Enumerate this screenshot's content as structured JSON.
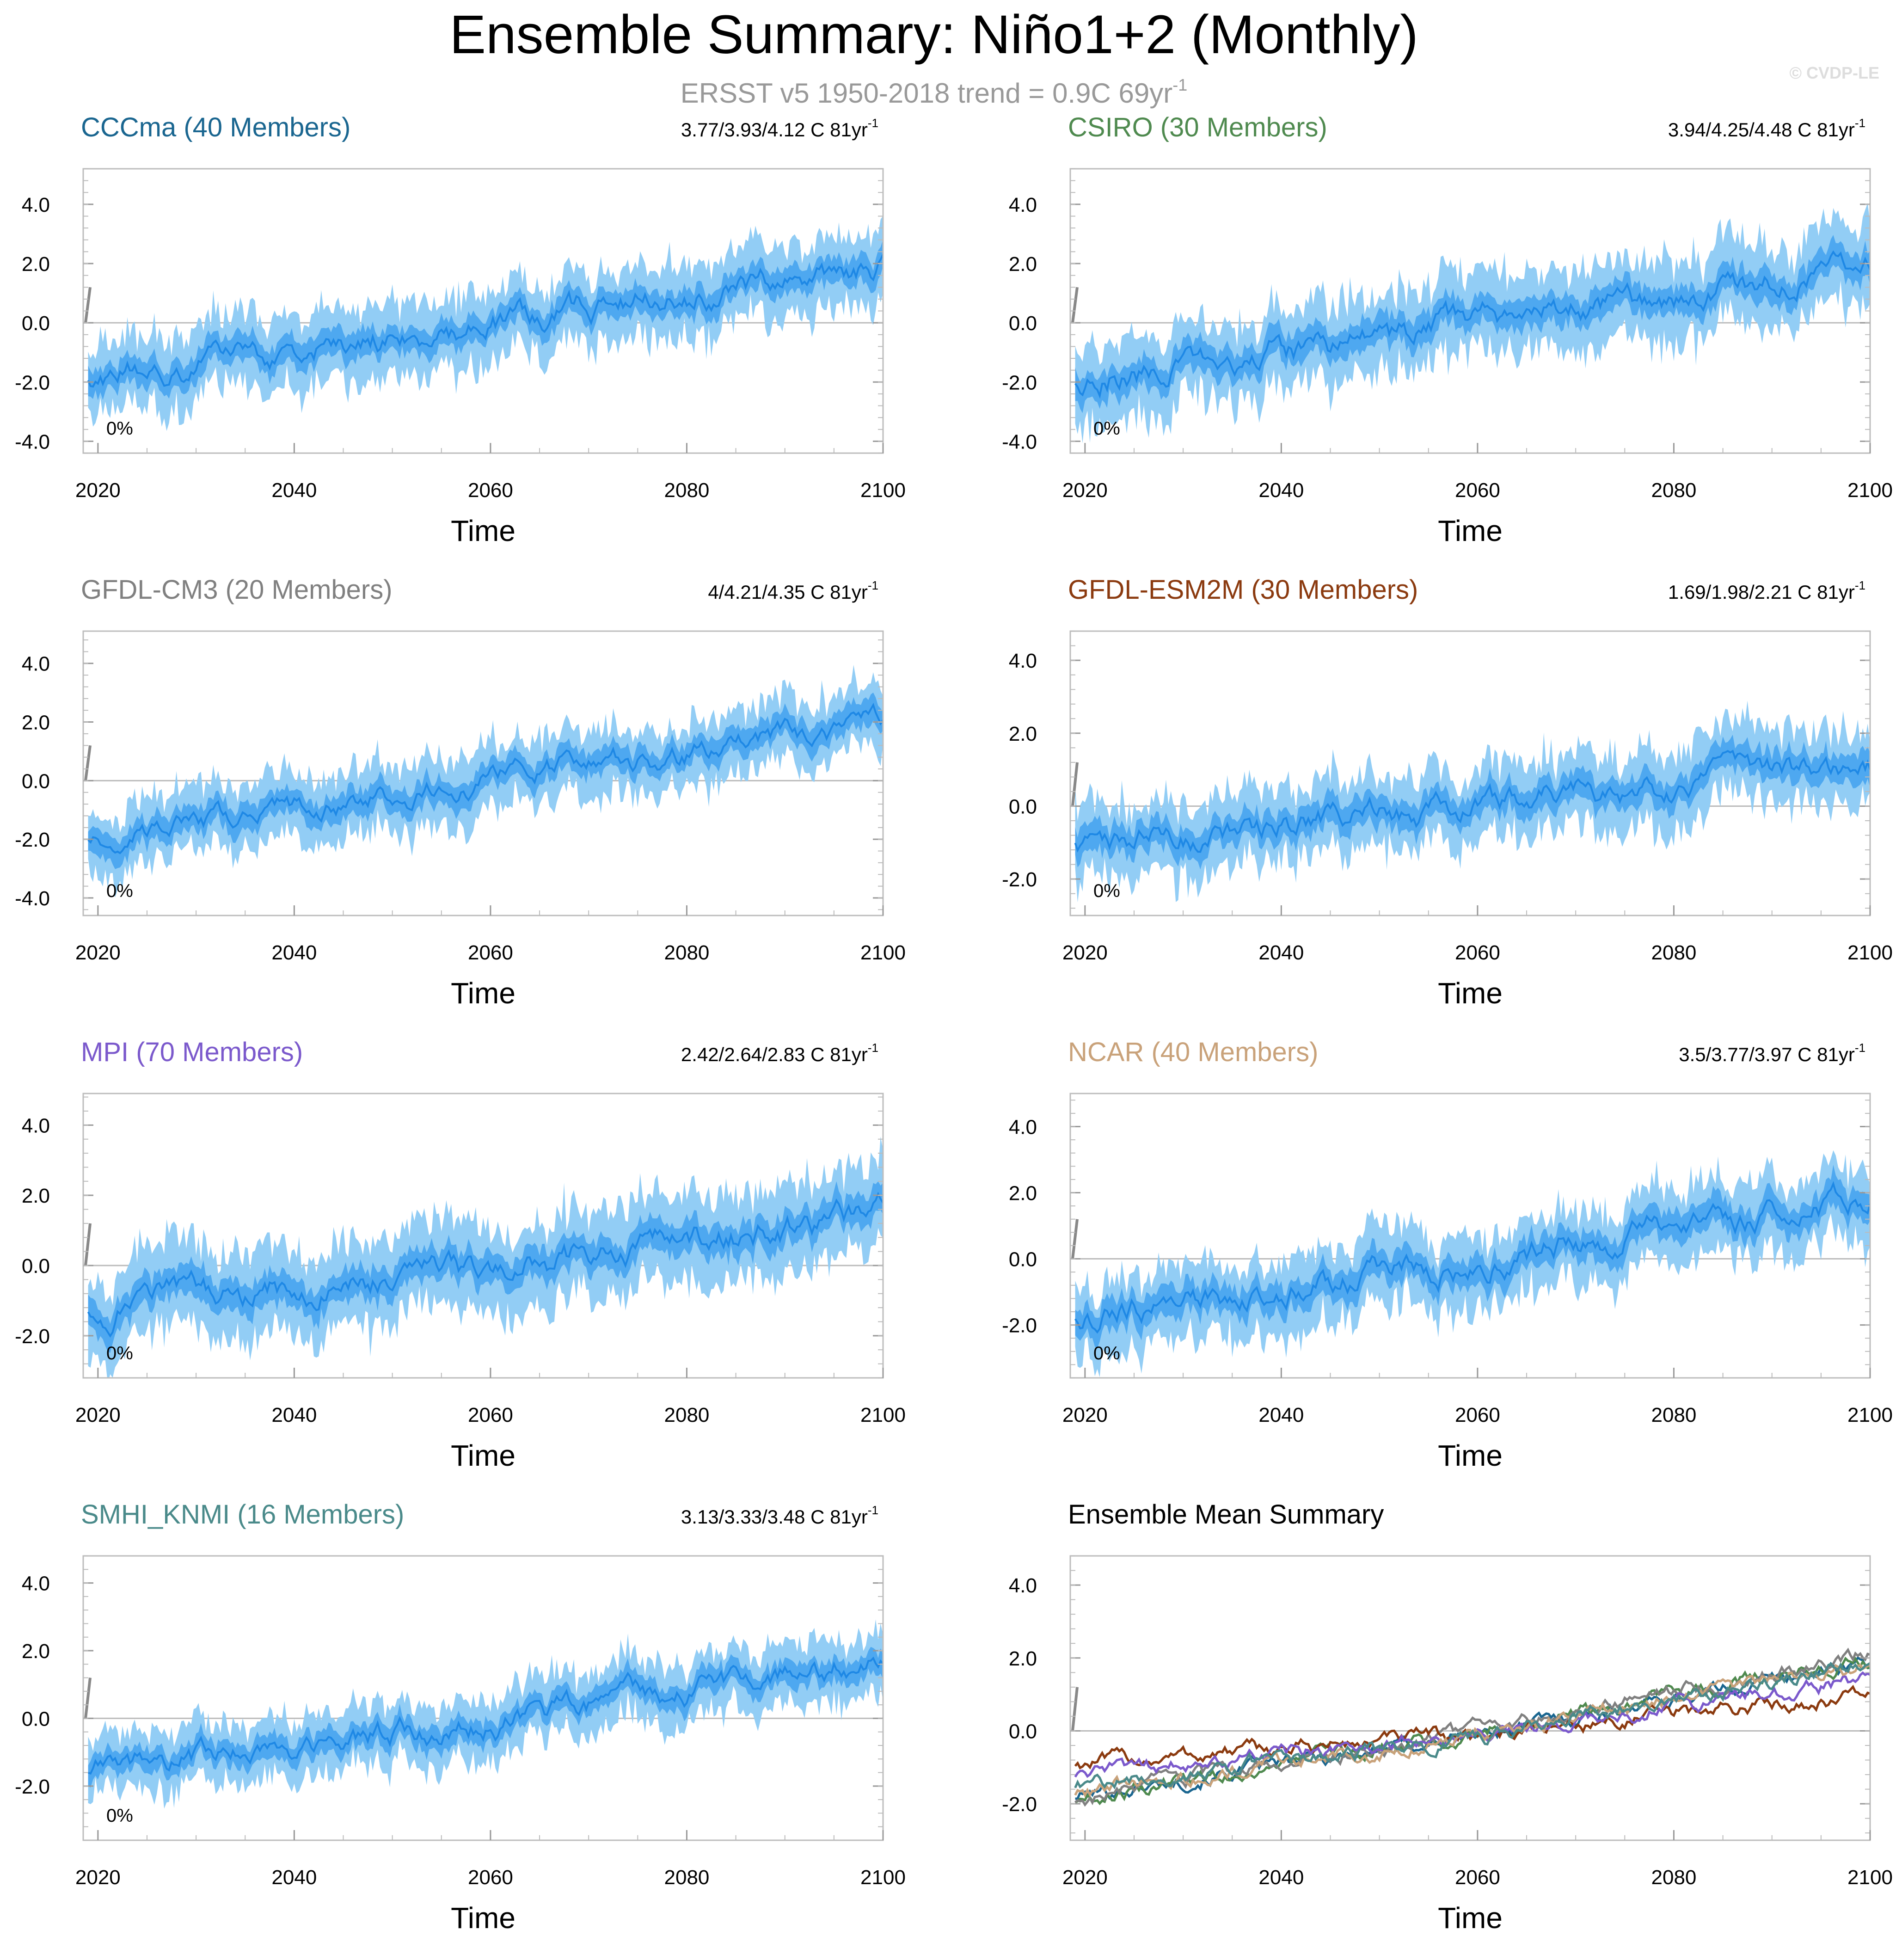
{
  "title": "Ensemble Summary: Niño1+2 (Monthly)",
  "subtitle": "ERSST v5 1950-2018 trend = 0.9C 69yr",
  "subtitle_sup": "-1",
  "watermark": "© CVDP-LE",
  "colors": {
    "band_outer": "#92cdf5",
    "band_inner": "#4ea8f0",
    "mean_line": "#1e88e5",
    "zero_line": "#bbbbbb",
    "obs_trend": "#888888"
  },
  "chart_data": [
    {
      "type": "area",
      "label": "CCCma (40 Members)",
      "label_color": "#1a6690",
      "trend": "3.77/3.93/4.12 C 81yr",
      "trend_sup": "-1",
      "pct": "0%",
      "xlabel": "Time",
      "xlim": [
        2018.5,
        2100
      ],
      "ylim": [
        -4.4,
        5.2
      ],
      "xticks": [
        2020,
        2040,
        2060,
        2080,
        2100
      ],
      "yticks": [
        4.0,
        2.0,
        0.0,
        -2.0,
        -4.0
      ],
      "ytick_labels": [
        "4.0",
        "2.0",
        "0.0",
        "-2.0",
        "-4.0"
      ],
      "mean": {
        "x": [
          2019,
          2030,
          2040,
          2050,
          2060,
          2070,
          2080,
          2090,
          2100
        ],
        "y": [
          -1.8,
          -1.3,
          -0.9,
          -0.5,
          -0.1,
          0.5,
          0.9,
          1.4,
          1.9
        ]
      },
      "spread_outer": 1.1,
      "spread_inner": 0.45,
      "noise": 0.55,
      "seed": 11
    },
    {
      "type": "area",
      "label": "CSIRO (30 Members)",
      "label_color": "#4f8a4f",
      "trend": "3.94/4.25/4.48 C 81yr",
      "trend_sup": "-1",
      "pct": "0%",
      "xlabel": "Time",
      "xlim": [
        2018.5,
        2100
      ],
      "ylim": [
        -4.4,
        5.2
      ],
      "xticks": [
        2020,
        2040,
        2060,
        2080,
        2100
      ],
      "yticks": [
        4.0,
        2.0,
        0.0,
        -2.0,
        -4.0
      ],
      "ytick_labels": [
        "4.0",
        "2.0",
        "0.0",
        "-2.0",
        "-4.0"
      ],
      "mean": {
        "x": [
          2019,
          2030,
          2040,
          2050,
          2060,
          2070,
          2080,
          2090,
          2100
        ],
        "y": [
          -1.9,
          -1.5,
          -1.0,
          -0.6,
          0.0,
          0.5,
          0.9,
          1.4,
          2.0
        ]
      },
      "spread_outer": 1.2,
      "spread_inner": 0.5,
      "noise": 0.6,
      "seed": 23
    },
    {
      "type": "area",
      "label": "GFDL-CM3 (20 Members)",
      "label_color": "#808080",
      "trend": "4/4.21/4.35 C 81yr",
      "trend_sup": "-1",
      "pct": "0%",
      "xlabel": "Time",
      "xlim": [
        2018.5,
        2100
      ],
      "ylim": [
        -4.6,
        5.1
      ],
      "xticks": [
        2020,
        2040,
        2060,
        2080,
        2100
      ],
      "yticks": [
        4.0,
        2.0,
        0.0,
        -2.0,
        -4.0
      ],
      "ytick_labels": [
        "4.0",
        "2.0",
        "0.0",
        "-2.0",
        "-4.0"
      ],
      "mean": {
        "x": [
          2019,
          2030,
          2040,
          2050,
          2060,
          2070,
          2080,
          2090,
          2100
        ],
        "y": [
          -1.9,
          -1.5,
          -1.0,
          -0.5,
          0.0,
          0.5,
          0.9,
          1.4,
          2.1
        ]
      },
      "spread_outer": 1.0,
      "spread_inner": 0.45,
      "noise": 0.5,
      "seed": 37
    },
    {
      "type": "area",
      "label": "GFDL-ESM2M (30 Members)",
      "label_color": "#8b3a0f",
      "trend": "1.69/1.98/2.21 C 81yr",
      "trend_sup": "-1",
      "pct": "0%",
      "xlabel": "Time",
      "xlim": [
        2018.5,
        2100
      ],
      "ylim": [
        -3.0,
        4.8
      ],
      "xticks": [
        2020,
        2040,
        2060,
        2080,
        2100
      ],
      "yticks": [
        4.0,
        2.0,
        0.0,
        -2.0
      ],
      "ytick_labels": [
        "4.0",
        "2.0",
        "0.0",
        "-2.0"
      ],
      "mean": {
        "x": [
          2019,
          2030,
          2040,
          2050,
          2060,
          2070,
          2080,
          2090,
          2100
        ],
        "y": [
          -0.9,
          -0.8,
          -0.6,
          -0.3,
          -0.1,
          0.3,
          0.5,
          0.8,
          1.0
        ]
      },
      "spread_outer": 0.9,
      "spread_inner": 0.4,
      "noise": 0.45,
      "seed": 41
    },
    {
      "type": "area",
      "label": "MPI (70 Members)",
      "label_color": "#7b59cc",
      "trend": "2.42/2.64/2.83 C 81yr",
      "trend_sup": "-1",
      "pct": "0%",
      "xlabel": "Time",
      "xlim": [
        2018.5,
        2100
      ],
      "ylim": [
        -3.2,
        4.9
      ],
      "xticks": [
        2020,
        2040,
        2060,
        2080,
        2100
      ],
      "yticks": [
        4.0,
        2.0,
        0.0,
        -2.0
      ],
      "ytick_labels": [
        "4.0",
        "2.0",
        "0.0",
        "-2.0"
      ],
      "mean": {
        "x": [
          2019,
          2030,
          2040,
          2050,
          2060,
          2070,
          2080,
          2090,
          2100
        ],
        "y": [
          -1.2,
          -1.0,
          -0.7,
          -0.4,
          -0.1,
          0.3,
          0.7,
          1.0,
          1.4
        ]
      },
      "spread_outer": 1.1,
      "spread_inner": 0.45,
      "noise": 0.5,
      "seed": 53
    },
    {
      "type": "area",
      "label": "NCAR (40 Members)",
      "label_color": "#c9a27a",
      "trend": "3.5/3.77/3.97 C 81yr",
      "trend_sup": "-1",
      "pct": "0%",
      "xlabel": "Time",
      "xlim": [
        2018.5,
        2100
      ],
      "ylim": [
        -3.6,
        5.0
      ],
      "xticks": [
        2020,
        2040,
        2060,
        2080,
        2100
      ],
      "yticks": [
        4.0,
        2.0,
        0.0,
        -2.0
      ],
      "ytick_labels": [
        "4.0",
        "2.0",
        "0.0",
        "-2.0"
      ],
      "mean": {
        "x": [
          2019,
          2030,
          2040,
          2050,
          2060,
          2070,
          2080,
          2090,
          2100
        ],
        "y": [
          -1.7,
          -1.3,
          -0.9,
          -0.5,
          -0.1,
          0.5,
          0.9,
          1.3,
          1.8
        ]
      },
      "spread_outer": 1.0,
      "spread_inner": 0.45,
      "noise": 0.5,
      "seed": 67
    },
    {
      "type": "area",
      "label": "SMHI_KNMI (16 Members)",
      "label_color": "#4a8a8a",
      "trend": "3.13/3.33/3.48 C 81yr",
      "trend_sup": "-1",
      "pct": "0%",
      "xlabel": "Time",
      "xlim": [
        2018.5,
        2100
      ],
      "ylim": [
        -3.6,
        4.8
      ],
      "xticks": [
        2020,
        2040,
        2060,
        2080,
        2100
      ],
      "yticks": [
        4.0,
        2.0,
        0.0,
        -2.0
      ],
      "ytick_labels": [
        "4.0",
        "2.0",
        "0.0",
        "-2.0"
      ],
      "mean": {
        "x": [
          2019,
          2030,
          2040,
          2050,
          2060,
          2070,
          2080,
          2090,
          2100
        ],
        "y": [
          -1.5,
          -1.2,
          -0.9,
          -0.5,
          -0.2,
          0.3,
          0.8,
          1.2,
          1.9
        ]
      },
      "spread_outer": 0.8,
      "spread_inner": 0.35,
      "noise": 0.45,
      "seed": 79
    },
    {
      "type": "line",
      "label": "Ensemble Mean Summary",
      "label_color": "#000000",
      "xlabel": "Time",
      "xlim": [
        2018.5,
        2100
      ],
      "ylim": [
        -3.0,
        4.8
      ],
      "xticks": [
        2020,
        2040,
        2060,
        2080,
        2100
      ],
      "yticks": [
        4.0,
        2.0,
        0.0,
        -2.0
      ],
      "ytick_labels": [
        "4.0",
        "2.0",
        "0.0",
        "-2.0"
      ],
      "series": [
        {
          "name": "CCCma",
          "color": "#1a6690",
          "x": [
            2019,
            2060,
            2100
          ],
          "y": [
            -1.8,
            -0.1,
            1.9
          ],
          "seed": 101
        },
        {
          "name": "CSIRO",
          "color": "#4f8a4f",
          "x": [
            2019,
            2060,
            2100
          ],
          "y": [
            -1.9,
            0.0,
            2.0
          ],
          "seed": 102
        },
        {
          "name": "GFDL-CM3",
          "color": "#808080",
          "x": [
            2019,
            2060,
            2100
          ],
          "y": [
            -1.9,
            0.0,
            2.1
          ],
          "seed": 103
        },
        {
          "name": "GFDL-ESM2M",
          "color": "#8b3a0f",
          "x": [
            2019,
            2060,
            2100
          ],
          "y": [
            -0.9,
            -0.1,
            1.0
          ],
          "seed": 104
        },
        {
          "name": "MPI",
          "color": "#7b59cc",
          "x": [
            2019,
            2060,
            2100
          ],
          "y": [
            -1.2,
            -0.1,
            1.4
          ],
          "seed": 105
        },
        {
          "name": "NCAR",
          "color": "#c9a27a",
          "x": [
            2019,
            2060,
            2100
          ],
          "y": [
            -1.7,
            -0.1,
            1.8
          ],
          "seed": 106
        },
        {
          "name": "SMHI_KNMI",
          "color": "#4a8a8a",
          "x": [
            2019,
            2060,
            2100
          ],
          "y": [
            -1.5,
            -0.2,
            1.9
          ],
          "seed": 107
        }
      ]
    }
  ]
}
